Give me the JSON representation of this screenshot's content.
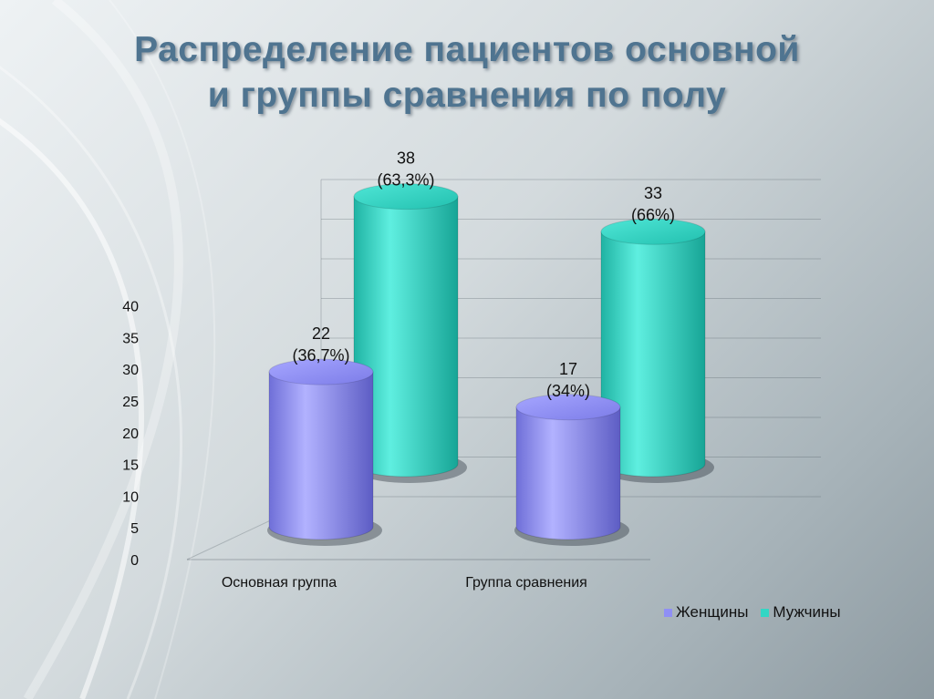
{
  "title": {
    "line1": "Распределение  пациентов основной",
    "line2": "и группы сравнения по полу"
  },
  "colors": {
    "women": "#8f8ff5",
    "men": "#33d6c4",
    "title": "#4f7490"
  },
  "chart_data": {
    "type": "bar",
    "style": "3d-cylinder",
    "categories": [
      "Основная группа",
      "Группа сравнения"
    ],
    "series": [
      {
        "name": "Женщины",
        "values": [
          22,
          17
        ],
        "labels": [
          "22",
          "17"
        ],
        "percent_labels": [
          "(36,7%)",
          "(34%)"
        ]
      },
      {
        "name": "Мужчины",
        "values": [
          38,
          33
        ],
        "labels": [
          "38",
          "33"
        ],
        "percent_labels": [
          "(63,3%)",
          "(66%)"
        ]
      }
    ],
    "yticks": [
      "0",
      "5",
      "10",
      "15",
      "20",
      "25",
      "30",
      "35",
      "40"
    ],
    "ylim": [
      0,
      40
    ],
    "grid": true,
    "legend": "bottom-right"
  }
}
